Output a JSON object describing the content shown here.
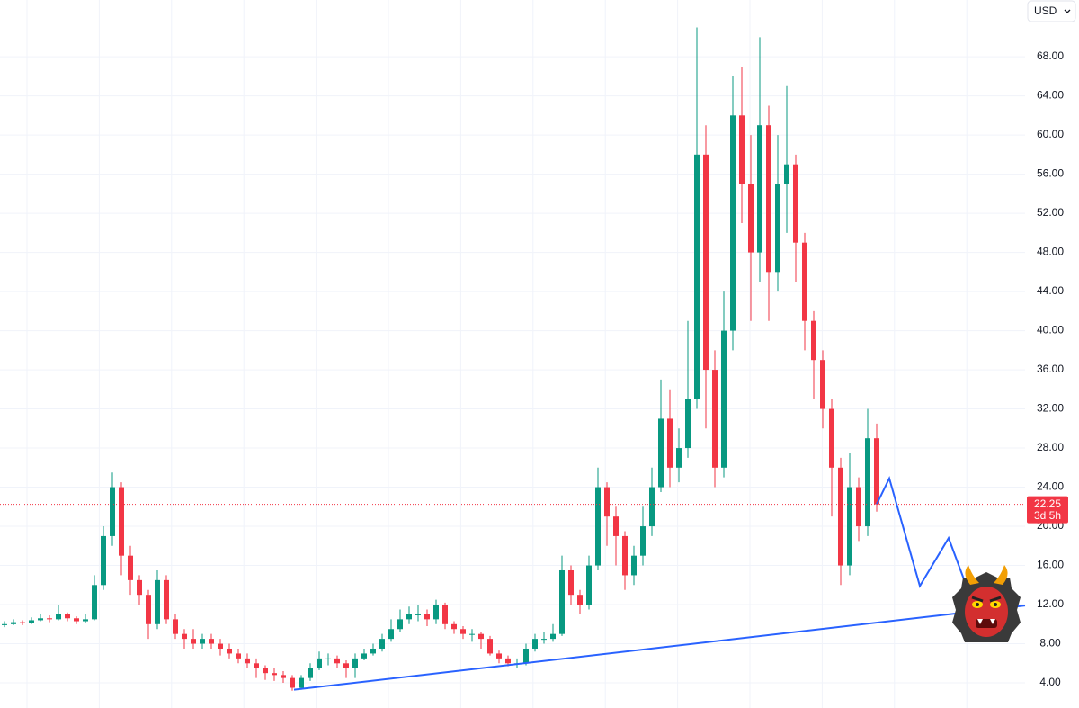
{
  "chart_data": {
    "type": "candlestick",
    "currency": "USD",
    "up_color": "#089981",
    "down_color": "#f23645",
    "xlim": [
      -0.5,
      113.5
    ],
    "ylim": [
      1.43,
      73.8
    ],
    "yticks": [
      {
        "value": 4,
        "label": "4.00"
      },
      {
        "value": 8,
        "label": "8.00"
      },
      {
        "value": 12,
        "label": "12.00"
      },
      {
        "value": 16,
        "label": "16.00"
      },
      {
        "value": 20,
        "label": "20.00"
      },
      {
        "value": 24,
        "label": "24.00"
      },
      {
        "value": 28,
        "label": "28.00"
      },
      {
        "value": 32,
        "label": "32.00"
      },
      {
        "value": 36,
        "label": "36.00"
      },
      {
        "value": 40,
        "label": "40.00"
      },
      {
        "value": 44,
        "label": "44.00"
      },
      {
        "value": 48,
        "label": "48.00"
      },
      {
        "value": 52,
        "label": "52.00"
      },
      {
        "value": 56,
        "label": "56.00"
      },
      {
        "value": 60,
        "label": "60.00"
      },
      {
        "value": 64,
        "label": "64.00"
      },
      {
        "value": 68,
        "label": "68.00"
      }
    ],
    "grid": true,
    "open": [
      9.9,
      10.0,
      10.2,
      10.1,
      10.4,
      10.6,
      10.5,
      11.0,
      10.6,
      10.3,
      10.5,
      14,
      19,
      24,
      17,
      14.5,
      13,
      10,
      14.5,
      10.5,
      9,
      8.5,
      8,
      8.5,
      8,
      7.5,
      7,
      6.5,
      6,
      5.5,
      5,
      4.8,
      4.5,
      3.5,
      4.5,
      5.5,
      6.5,
      6.5,
      6,
      5.5,
      6.5,
      7,
      7.5,
      8.5,
      9.5,
      10.5,
      11,
      11,
      10.5,
      12,
      10,
      9.5,
      9,
      9,
      8.5,
      7,
      6.5,
      6,
      6,
      7.5,
      8.5,
      8.5,
      9,
      15.5,
      13,
      12,
      16,
      24,
      21,
      19,
      15,
      17,
      20,
      24,
      31,
      26,
      28,
      33,
      58,
      36,
      26,
      40,
      62,
      55,
      48,
      61,
      46,
      55,
      57,
      49,
      41,
      37,
      32,
      26,
      16,
      24,
      20,
      29
    ],
    "high": [
      10.3,
      10.5,
      10.4,
      10.7,
      11.0,
      10.9,
      12.0,
      11.2,
      10.8,
      11.0,
      15,
      20,
      25.5,
      24.5,
      18,
      15,
      13.5,
      15.5,
      15,
      11,
      9.5,
      9.5,
      9,
      9,
      8.5,
      8,
      7.5,
      7,
      6.5,
      5.8,
      5.5,
      5.2,
      4.8,
      4.8,
      6,
      7.2,
      7,
      6.8,
      6.3,
      7,
      7.5,
      8,
      9,
      10.5,
      11.5,
      11.8,
      12,
      11.5,
      12.5,
      12.2,
      10.3,
      9.8,
      9.5,
      9.2,
      8.8,
      7.3,
      6.8,
      6.5,
      8,
      9,
      9.2,
      10,
      17,
      16,
      13.5,
      17,
      26,
      24.5,
      22,
      19.5,
      18,
      22,
      26,
      35,
      34,
      30,
      41,
      71,
      61,
      38,
      44,
      66,
      67,
      60,
      70,
      63,
      60,
      65,
      58,
      50,
      42,
      38,
      33,
      27,
      27.5,
      25,
      32,
      30.5
    ],
    "low": [
      9.7,
      9.9,
      9.9,
      10.0,
      10.3,
      10.2,
      10.4,
      10.3,
      10.0,
      10.1,
      10.4,
      13.5,
      18,
      15,
      13,
      12,
      8.5,
      9.5,
      10,
      8.5,
      7.5,
      7.5,
      7.5,
      7.5,
      6.8,
      6.5,
      6,
      5.5,
      4.5,
      4.3,
      4.2,
      4,
      3.2,
      3.3,
      4.2,
      5.3,
      5.8,
      5.5,
      4.5,
      4.5,
      6.3,
      6.8,
      7.2,
      8.2,
      9.2,
      10,
      10.3,
      9.8,
      10,
      9.5,
      9,
      8.5,
      8.2,
      7.5,
      6.8,
      6,
      5.7,
      5.5,
      5.8,
      7.2,
      8,
      8.2,
      8.8,
      12,
      11,
      11.5,
      15.5,
      18,
      16,
      13.5,
      14,
      16,
      19,
      23.5,
      24,
      24.5,
      27,
      32,
      30,
      24,
      25,
      38,
      51,
      41,
      45,
      41,
      44,
      50,
      45,
      38,
      33,
      30,
      21,
      14,
      15,
      18.5,
      19,
      21.5
    ],
    "close": [
      10.0,
      10.2,
      10.1,
      10.4,
      10.6,
      10.5,
      11.0,
      10.6,
      10.3,
      10.5,
      14,
      19,
      24,
      17,
      14.5,
      13,
      10,
      14.5,
      10.5,
      9,
      8.5,
      8,
      8.5,
      8,
      7.5,
      7,
      6.5,
      6,
      5.5,
      5,
      4.8,
      4.5,
      3.5,
      4.5,
      5.5,
      6.5,
      6.5,
      6,
      5.5,
      6.5,
      7,
      7.5,
      8.5,
      9.5,
      10.5,
      11,
      11,
      10.5,
      12,
      10,
      9.5,
      9,
      9,
      8.5,
      7,
      6.5,
      6,
      6,
      7.5,
      8.5,
      8.5,
      9,
      15.5,
      13,
      12,
      16,
      24,
      21,
      19,
      15,
      17,
      20,
      24,
      31,
      26,
      28,
      33,
      58,
      36,
      26,
      40,
      62,
      55,
      48,
      61,
      46,
      55,
      57,
      49,
      41,
      37,
      32,
      26,
      16,
      24,
      20,
      29,
      22.25
    ],
    "price_line": {
      "value": 22.25,
      "label": "22.25",
      "countdown": "3d 5h",
      "color": "#f23645"
    },
    "drawings": [
      {
        "color": "#2962ff",
        "x": [
          32.2,
          113.5
        ],
        "y": [
          3.3,
          11.9
        ]
      },
      {
        "color": "#2962ff",
        "x": [
          97,
          98.4,
          101.8,
          105,
          107.3
        ],
        "y": [
          22.25,
          24.9,
          13.9,
          18.8,
          13.1
        ]
      }
    ]
  }
}
